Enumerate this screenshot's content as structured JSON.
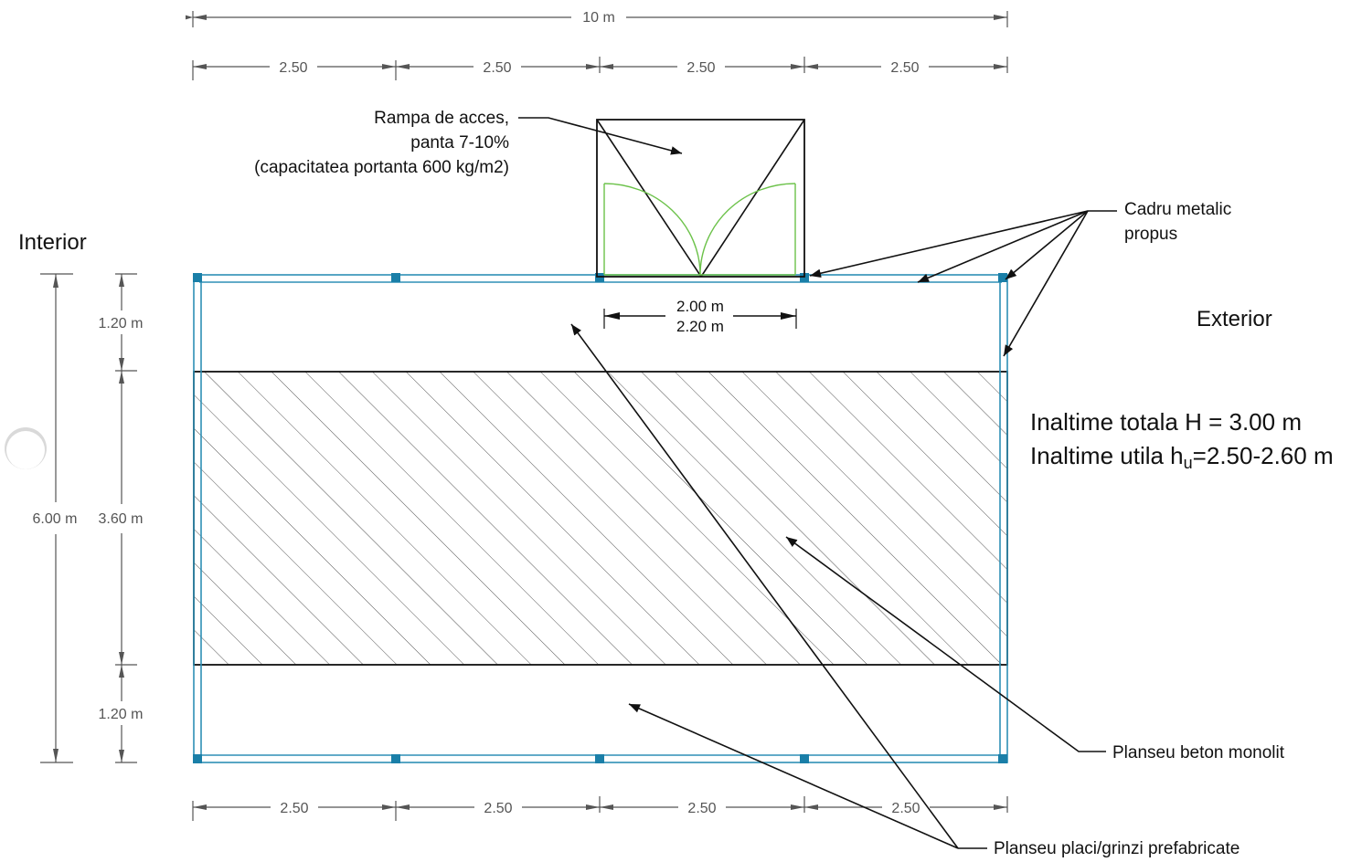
{
  "labels": {
    "ramp_line1": "Rampa de acces,",
    "ramp_line2": "panta 7-10%",
    "ramp_line3": "(capacitatea portanta 600 kg/m2)",
    "cadru_line1": "Cadru metalic",
    "cadru_line2": "propus",
    "interior": "Interior",
    "exterior": "Exterior",
    "h_total": "Inaltime totala H = 3.00 m",
    "h_util_prefix": "Inaltime utila h",
    "h_util_sub": "u",
    "h_util_suffix": "=2.50-2.60 m",
    "planseu_monolit": "Planseu beton monolit",
    "planseu_prefab": "Planseu placi/grinzi prefabricate"
  },
  "dimensions": {
    "total_width": "10 m",
    "top_segments": [
      "2.50",
      "2.50",
      "2.50",
      "2.50"
    ],
    "bottom_segments": [
      "2.50",
      "2.50",
      "2.50",
      "2.50"
    ],
    "door_width_1": "2.00 m",
    "door_width_2": "2.20 m",
    "total_depth": "6.00 m",
    "depth_top": "1.20 m",
    "depth_middle": "3.60 m",
    "depth_bottom": "1.20 m"
  },
  "colors": {
    "frame": "#2e8fb5",
    "column": "#1a7fa8",
    "door_swing": "#6cc24a",
    "lines": "#111111",
    "dimension_lines": "#555555"
  }
}
